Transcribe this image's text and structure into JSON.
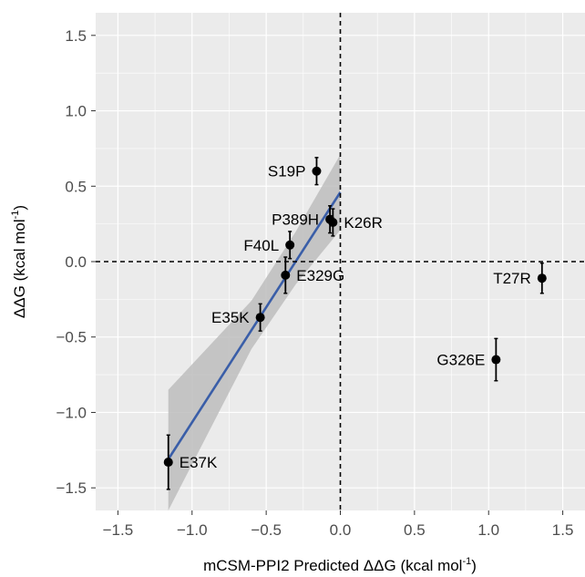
{
  "chart_data": {
    "type": "scatter",
    "title": "",
    "xlabel": {
      "prefix": "mCSM-PPI2 Predicted ΔΔG (kcal mol",
      "sup": "-1",
      "suffix": ")"
    },
    "ylabel": {
      "prefix": "ΔΔG (kcal mol",
      "sup": "-1",
      "suffix": ")"
    },
    "xlim": [
      -1.65,
      1.65
    ],
    "ylim": [
      -1.65,
      1.65
    ],
    "xticks": [
      -1.5,
      -1.0,
      -0.5,
      0.0,
      0.5,
      1.0,
      1.5
    ],
    "xtick_labels": [
      "−1.5",
      "−1.0",
      "−0.5",
      "0.0",
      "0.5",
      "1.0",
      "1.5"
    ],
    "yticks": [
      1.5,
      1.0,
      0.5,
      0.0,
      -0.5,
      -1.0,
      -1.5
    ],
    "ytick_labels": [
      "1.5",
      "1.0",
      "0.5",
      "0.0",
      "−0.5",
      "−1.0",
      "−1.5"
    ],
    "grid": true,
    "reference_lines": {
      "x": 0,
      "y": 0,
      "style": "dashed"
    },
    "points": [
      {
        "label": "S19P",
        "x": -0.16,
        "y": 0.6,
        "err": 0.09,
        "label_pos": "left"
      },
      {
        "label": "P389H",
        "x": -0.07,
        "y": 0.28,
        "err": 0.09,
        "label_pos": "left"
      },
      {
        "label": "K26R",
        "x": -0.05,
        "y": 0.26,
        "err": 0.09,
        "label_pos": "right"
      },
      {
        "label": "F40L",
        "x": -0.34,
        "y": 0.11,
        "err": 0.09,
        "label_pos": "left"
      },
      {
        "label": "E329G",
        "x": -0.37,
        "y": -0.09,
        "err": 0.12,
        "label_pos": "right"
      },
      {
        "label": "E35K",
        "x": -0.54,
        "y": -0.37,
        "err": 0.09,
        "label_pos": "left"
      },
      {
        "label": "E37K",
        "x": -1.16,
        "y": -1.33,
        "err": 0.18,
        "label_pos": "right"
      },
      {
        "label": "T27R",
        "x": 1.36,
        "y": -0.11,
        "err": 0.1,
        "label_pos": "left"
      },
      {
        "label": "G326E",
        "x": 1.05,
        "y": -0.65,
        "err": 0.14,
        "label_pos": "left"
      }
    ],
    "fit": {
      "x0": -1.16,
      "y0": -1.31,
      "x1": 0.0,
      "y1": 0.46,
      "ci_upper": [
        [
          -1.16,
          -0.85
        ],
        [
          -0.6,
          -0.26
        ],
        [
          -0.3,
          0.2
        ],
        [
          0.0,
          0.71
        ]
      ],
      "ci_lower": [
        [
          0.0,
          0.21
        ],
        [
          -0.3,
          -0.15
        ],
        [
          -0.6,
          -0.58
        ],
        [
          -1.16,
          -1.67
        ]
      ]
    },
    "colors": {
      "panel": "#ebebeb",
      "grid": "#ffffff",
      "point": "#000000",
      "fit_line": "#3a5ea8",
      "ci_band": "#bdbdbd"
    }
  }
}
